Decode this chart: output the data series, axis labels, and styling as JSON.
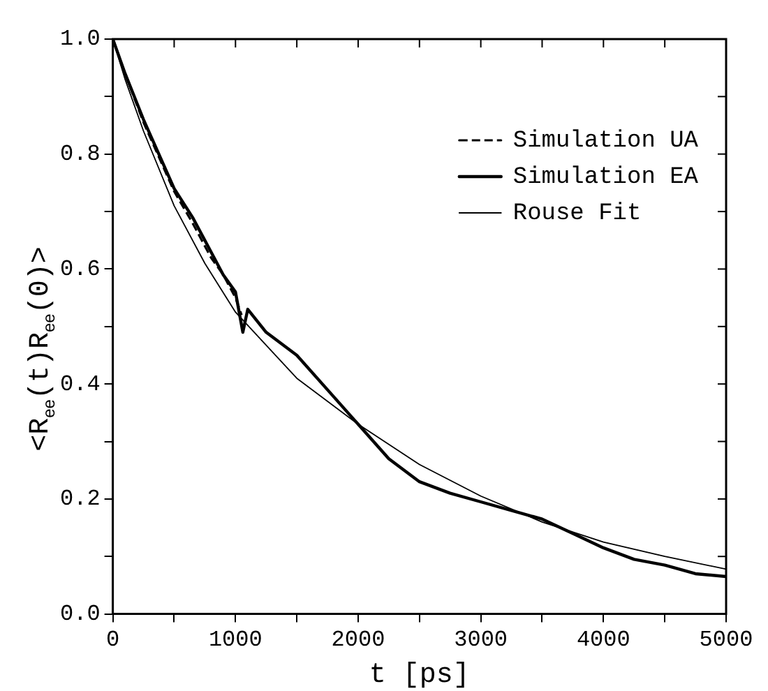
{
  "chart_data": {
    "type": "line",
    "xlabel": "t [ps]",
    "ylabel": "<R$_{ee}$(t)R$_{ee}$(0)>",
    "xlim": [
      0,
      5000
    ],
    "ylim": [
      0,
      1
    ],
    "xticks": [
      0,
      {
        "value": 500,
        "label": null
      },
      1000,
      {
        "value": 1500,
        "label": null
      },
      2000,
      {
        "value": 2500,
        "label": null
      },
      3000,
      {
        "value": 3500,
        "label": null
      },
      4000,
      {
        "value": 4500,
        "label": null
      },
      5000
    ],
    "yticks": [
      {
        "value": 0,
        "label": "0.0"
      },
      {
        "value": 0.1,
        "label": null
      },
      {
        "value": 0.2,
        "label": "0.2"
      },
      {
        "value": 0.3,
        "label": null
      },
      {
        "value": 0.4,
        "label": "0.4"
      },
      {
        "value": 0.5,
        "label": null
      },
      {
        "value": 0.6,
        "label": "0.6"
      },
      {
        "value": 0.7,
        "label": null
      },
      {
        "value": 0.8,
        "label": "0.8"
      },
      {
        "value": 0.9,
        "label": null
      },
      {
        "value": 1,
        "label": "1.0"
      }
    ],
    "grid": false,
    "legend": "top right",
    "marker": "none",
    "series": [
      {
        "name": "Simulation UA",
        "color": "#000000",
        "line_style": "dashed",
        "x": [
          0,
          100,
          250,
          500,
          650,
          800,
          900,
          1000,
          1050
        ],
        "values": [
          1.0,
          0.94,
          0.855,
          0.735,
          0.68,
          0.62,
          0.59,
          0.55,
          0.52
        ]
      },
      {
        "name": "Simulation EA",
        "color": "#000000",
        "line_style": "solid",
        "x": [
          0,
          100,
          250,
          500,
          650,
          800,
          900,
          1000,
          1060,
          1100,
          1250,
          1500,
          1750,
          2000,
          2250,
          2500,
          2750,
          3000,
          3250,
          3500,
          3750,
          4000,
          4250,
          4500,
          4750,
          5000
        ],
        "values": [
          1.0,
          0.94,
          0.86,
          0.74,
          0.69,
          0.63,
          0.59,
          0.56,
          0.49,
          0.53,
          0.49,
          0.45,
          0.39,
          0.33,
          0.27,
          0.23,
          0.21,
          0.195,
          0.18,
          0.165,
          0.14,
          0.115,
          0.095,
          0.085,
          0.07,
          0.065
        ]
      },
      {
        "name": "Rouse Fit",
        "color": "#000000",
        "line_style": "solid",
        "x": [
          0,
          100,
          250,
          500,
          750,
          1000,
          1500,
          2000,
          2500,
          3000,
          3500,
          4000,
          4500,
          5000
        ],
        "values": [
          1.0,
          0.93,
          0.84,
          0.71,
          0.61,
          0.525,
          0.41,
          0.33,
          0.26,
          0.205,
          0.16,
          0.125,
          0.1,
          0.078
        ]
      }
    ]
  }
}
